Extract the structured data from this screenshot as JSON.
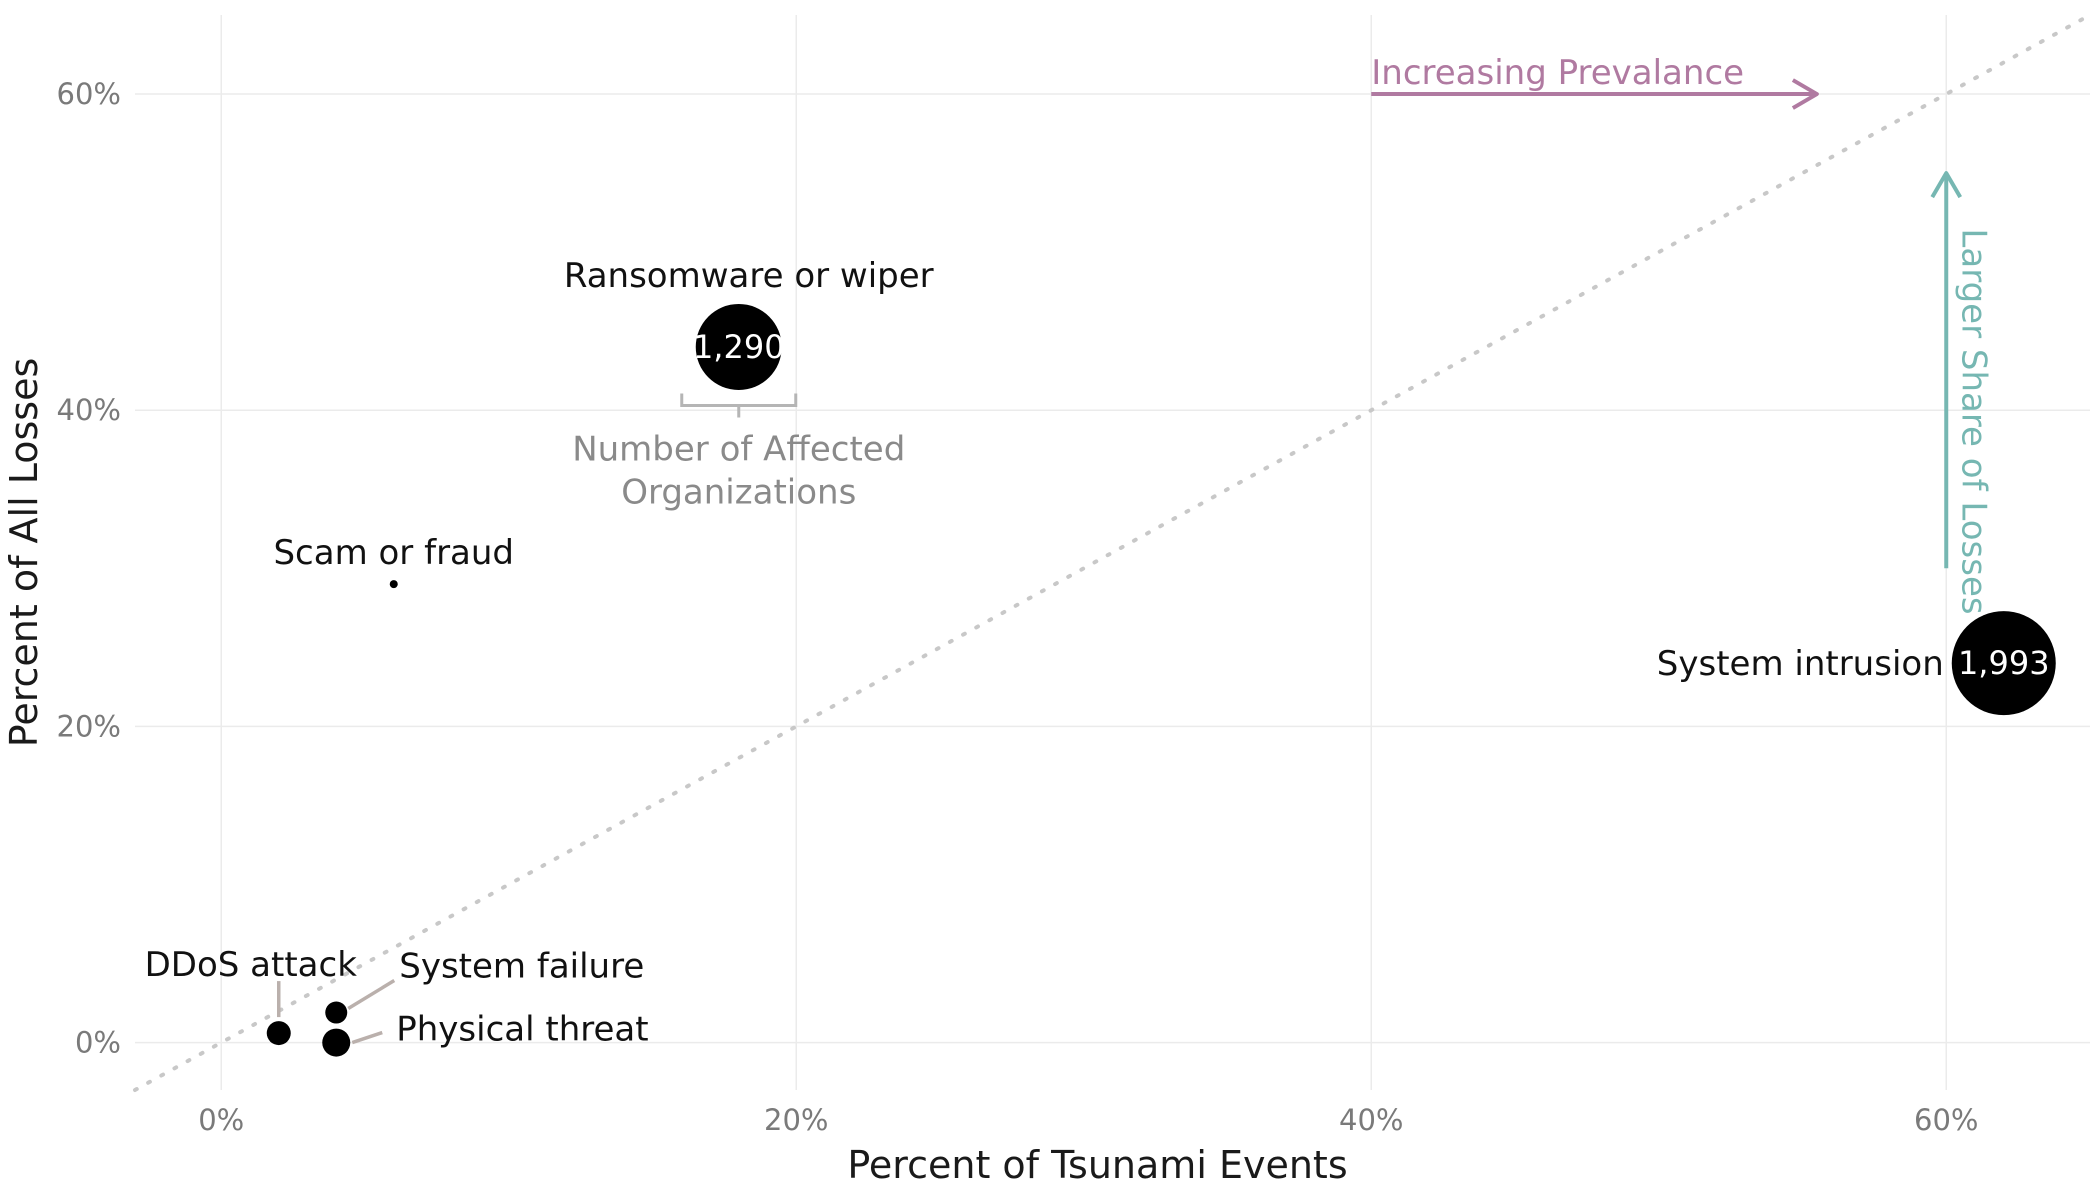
{
  "chart_data": {
    "type": "scatter",
    "xlabel": "Percent of Tsunami Events",
    "ylabel": "Percent of All Losses",
    "xlim": [
      -3,
      65
    ],
    "ylim": [
      -3,
      65
    ],
    "x_ticks": [
      "0%",
      "20%",
      "40%",
      "60%"
    ],
    "y_ticks": [
      "0%",
      "20%",
      "40%",
      "60%"
    ],
    "x_tick_values": [
      0,
      20,
      40,
      60
    ],
    "y_tick_values": [
      0,
      20,
      40,
      60
    ],
    "grid": true,
    "reference_line": "y = x (dotted)",
    "points": [
      {
        "label": "Ransomware or wiper",
        "x": 18,
        "y": 44,
        "count": "1,290",
        "show_count": true
      },
      {
        "label": "Scam or fraud",
        "x": 6,
        "y": 29,
        "count": "",
        "show_count": false
      },
      {
        "label": "System intrusion",
        "x": 62,
        "y": 24,
        "count": "1,993",
        "show_count": true
      },
      {
        "label": "DDoS attack",
        "x": 2,
        "y": 0.6,
        "count": "",
        "show_count": false
      },
      {
        "label": "System failure",
        "x": 4,
        "y": 1.9,
        "count": "",
        "show_count": false
      },
      {
        "label": "Physical threat",
        "x": 4,
        "y": 0,
        "count": "",
        "show_count": false
      }
    ],
    "annotations": {
      "prevalence": "Increasing Prevalance",
      "losses": "Larger Share of Losses",
      "size_legend": [
        "Number of Affected",
        "Organizations"
      ]
    },
    "colors": {
      "prevalence": "#b07aa1",
      "losses": "#76b7b2",
      "points": "#000000",
      "reference": "#c8c8c8",
      "leader": "#bab0ac"
    }
  }
}
